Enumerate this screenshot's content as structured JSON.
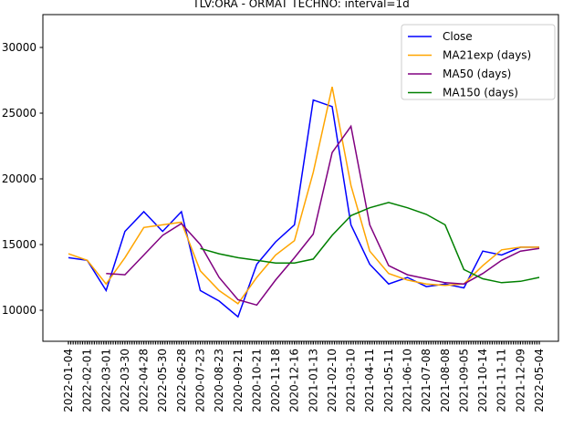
{
  "chart_data": {
    "type": "line",
    "title": "TLV:ORA - ORMAT TECHNO: interval=1d",
    "categories": [
      "2022-01-04",
      "2022-02-01",
      "2022-03-01",
      "2022-03-30",
      "2022-04-28",
      "2022-05-30",
      "2022-06-28",
      "2020-07-23",
      "2020-08-23",
      "2020-09-21",
      "2020-10-21",
      "2020-11-18",
      "2020-12-16",
      "2021-01-13",
      "2021-02-10",
      "2021-03-10",
      "2021-04-11",
      "2021-05-11",
      "2021-06-10",
      "2021-07-08",
      "2021-08-08",
      "2021-09-05",
      "2021-10-14",
      "2021-11-11",
      "2021-12-09",
      "2022-05-04"
    ],
    "series": [
      {
        "name": "Close",
        "color": "#0000ff",
        "values": [
          14000,
          13800,
          11500,
          16000,
          17500,
          16000,
          17500,
          11500,
          10700,
          9500,
          13500,
          15200,
          16500,
          26000,
          25500,
          16500,
          13500,
          12000,
          12500,
          11800,
          12000,
          11700,
          14500,
          14200,
          14800,
          14800
        ]
      },
      {
        "name": "MA21exp (days)",
        "color": "#ffa500",
        "values": [
          14300,
          13800,
          12000,
          14000,
          16300,
          16500,
          16700,
          13000,
          11500,
          10500,
          12500,
          14200,
          15300,
          20500,
          27000,
          19500,
          14500,
          12800,
          12300,
          12000,
          11900,
          12000,
          13400,
          14600,
          14800,
          14800
        ]
      },
      {
        "name": "MA50 (days)",
        "color": "#800080",
        "values": [
          null,
          null,
          12800,
          12700,
          14200,
          15700,
          16600,
          15000,
          12500,
          10800,
          10400,
          12300,
          14000,
          15800,
          22000,
          24000,
          16500,
          13400,
          12700,
          12400,
          12100,
          12000,
          12800,
          13800,
          14500,
          14700
        ]
      },
      {
        "name": "MA150 (days)",
        "color": "#008000",
        "values": [
          null,
          null,
          null,
          null,
          null,
          null,
          null,
          14700,
          14300,
          14000,
          13800,
          13600,
          13600,
          13900,
          15700,
          17200,
          17800,
          18200,
          17800,
          17300,
          16500,
          13100,
          12400,
          12100,
          12200,
          12500
        ]
      }
    ],
    "ylim": [
      7640,
      32500
    ],
    "yticks": [
      10000,
      15000,
      20000,
      25000,
      30000
    ],
    "legend": "upper right"
  }
}
